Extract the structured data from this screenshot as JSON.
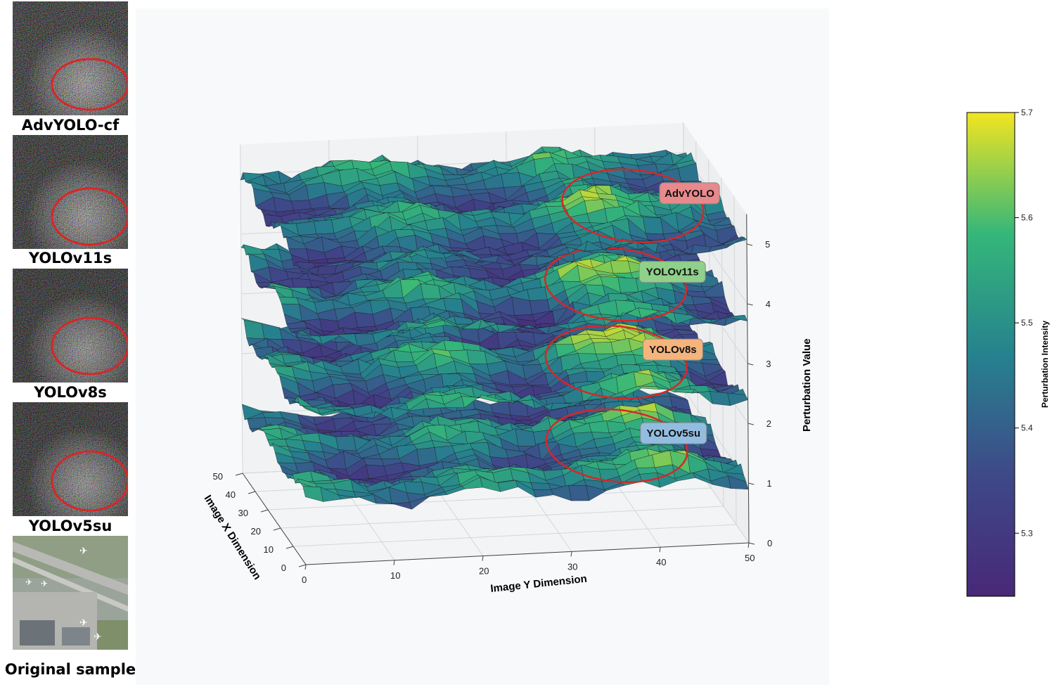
{
  "thumbnails": [
    {
      "label": "AdvYOLO-cf",
      "kind": "noise"
    },
    {
      "label": "YOLOv11s",
      "kind": "noise"
    },
    {
      "label": "YOLOv8s",
      "kind": "noise"
    },
    {
      "label": "YOLOv5su",
      "kind": "noise"
    },
    {
      "label": "Original sample",
      "kind": "aerial"
    }
  ],
  "colors": {
    "highlight": "#d62728",
    "viridis": [
      "#440154",
      "#3b528b",
      "#21918c",
      "#5ec962",
      "#fde725"
    ]
  },
  "chart_data": {
    "type": "surface3d",
    "title": "",
    "xlabel": "Image X Dimension",
    "ylabel": "Image Y Dimension",
    "zlabel": "Perturbation Value",
    "x_ticks": [
      "0",
      "10",
      "20",
      "30",
      "40",
      "50"
    ],
    "y_ticks": [
      "0",
      "10",
      "20",
      "30",
      "40",
      "50"
    ],
    "z_ticks": [
      "0",
      "1",
      "2",
      "3",
      "4",
      "5"
    ],
    "xlim": [
      0,
      50
    ],
    "ylim": [
      0,
      50
    ],
    "zlim": [
      0,
      5.5
    ],
    "grid": true,
    "series": [
      {
        "name": "AdvYOLO",
        "base_z": 5.0,
        "tag_color": "#e8898c",
        "highlight_region": {
          "x": [
            5,
            35
          ],
          "y": [
            34,
            46
          ]
        }
      },
      {
        "name": "YOLOv11s",
        "base_z": 3.7,
        "tag_color": "#8fd08a",
        "highlight_region": {
          "x": [
            5,
            35
          ],
          "y": [
            32,
            44
          ]
        }
      },
      {
        "name": "YOLOv8s",
        "base_z": 2.4,
        "tag_color": "#f5b47c",
        "highlight_region": {
          "x": [
            5,
            35
          ],
          "y": [
            32,
            44
          ]
        }
      },
      {
        "name": "YOLOv5su",
        "base_z": 1.0,
        "tag_color": "#93bde0",
        "highlight_region": {
          "x": [
            5,
            35
          ],
          "y": [
            32,
            44
          ]
        }
      }
    ],
    "colorbar": {
      "label": "Perturbation Intensity",
      "min": 5.24,
      "max": 5.7,
      "ticks": [
        "5.3",
        "5.4",
        "5.5",
        "5.6",
        "5.7"
      ]
    }
  }
}
